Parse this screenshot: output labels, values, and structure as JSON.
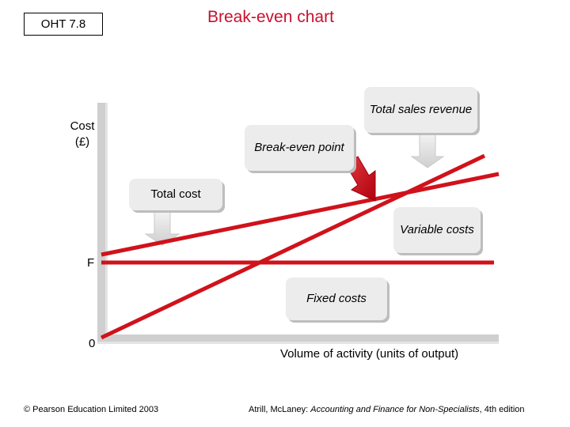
{
  "header": {
    "slide_code": "OHT 7.8",
    "title": "Break-even chart"
  },
  "axes": {
    "y_label": "Cost\n(£)",
    "origin_label": "0",
    "fixed_cost_label": "F",
    "x_label": "Volume of activity (units of output)"
  },
  "callouts": {
    "total_sales_revenue": "Total sales revenue",
    "break_even_point": "Break-even point",
    "total_cost": "Total cost",
    "variable_costs": "Variable costs",
    "fixed_costs": "Fixed costs"
  },
  "footer": {
    "copyright": "© Pearson Education Limited 2003",
    "citation_prefix": "Atrill, McLaney: ",
    "citation_title": "Accounting and Finance for Non-Specialists",
    "citation_suffix": ", 4th edition"
  },
  "colors": {
    "line": "#d0121b",
    "axis": "#cfcfcf",
    "callout": "#ececec"
  }
}
